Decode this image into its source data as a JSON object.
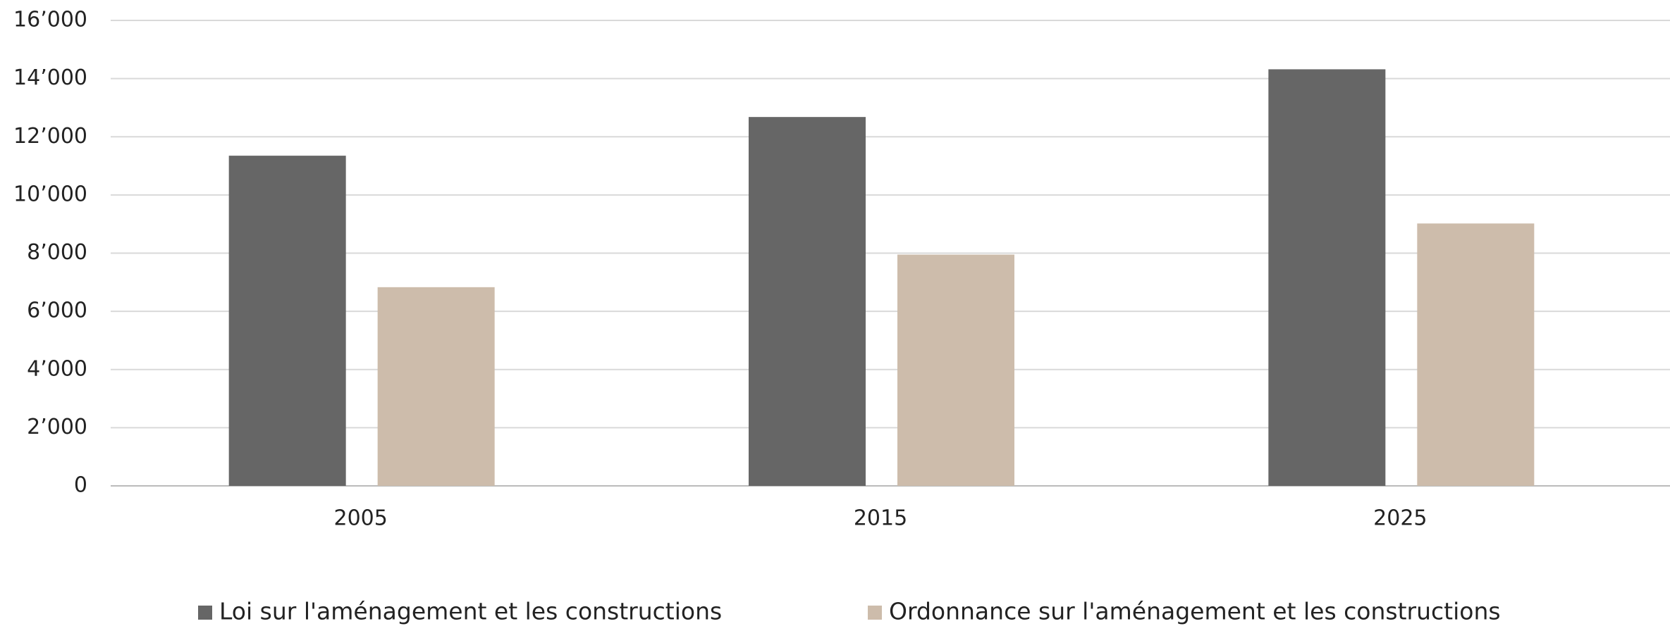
{
  "chart_data": {
    "type": "bar",
    "categories": [
      "2005",
      "2015",
      "2025"
    ],
    "series": [
      {
        "name": "Loi sur l'aménagement et les constructions",
        "color": "#666666",
        "values": [
          11350,
          12680,
          14320
        ]
      },
      {
        "name": "Ordonnance sur l'aménagement et les constructions",
        "color": "#cdbcab",
        "values": [
          6830,
          7950,
          9020
        ]
      }
    ],
    "ylim": [
      0,
      16000
    ],
    "yticks": [
      {
        "value": 0,
        "label": "0"
      },
      {
        "value": 2000,
        "label": "2’000"
      },
      {
        "value": 4000,
        "label": "4’000"
      },
      {
        "value": 6000,
        "label": "6’000"
      },
      {
        "value": 8000,
        "label": "8’000"
      },
      {
        "value": 10000,
        "label": "10’000"
      },
      {
        "value": 12000,
        "label": "12’000"
      },
      {
        "value": 14000,
        "label": "14’000"
      },
      {
        "value": 16000,
        "label": "16’000"
      }
    ],
    "grid": true,
    "legend": "bottom"
  }
}
